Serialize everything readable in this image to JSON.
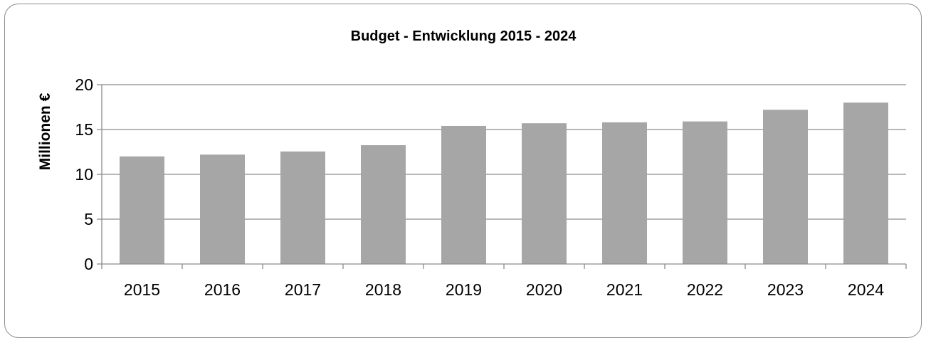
{
  "chart_data": {
    "type": "bar",
    "title": "Budget - Entwicklung 2015 - 2024",
    "xlabel": "",
    "ylabel": "Millionen €",
    "categories": [
      "2015",
      "2016",
      "2017",
      "2018",
      "2019",
      "2020",
      "2021",
      "2022",
      "2023",
      "2024"
    ],
    "values": [
      12.0,
      12.2,
      12.55,
      13.25,
      15.4,
      15.7,
      15.8,
      15.9,
      17.2,
      18.0
    ],
    "ylim": [
      0,
      20
    ],
    "yticks": [
      "0",
      "5",
      "10",
      "15",
      "20"
    ],
    "grid": true,
    "legend": "none",
    "colors": {
      "bar": "#a6a6a6",
      "grid": "#8c8c8c",
      "axis": "#8c8c8c",
      "frame": "#8c8c8c"
    }
  }
}
